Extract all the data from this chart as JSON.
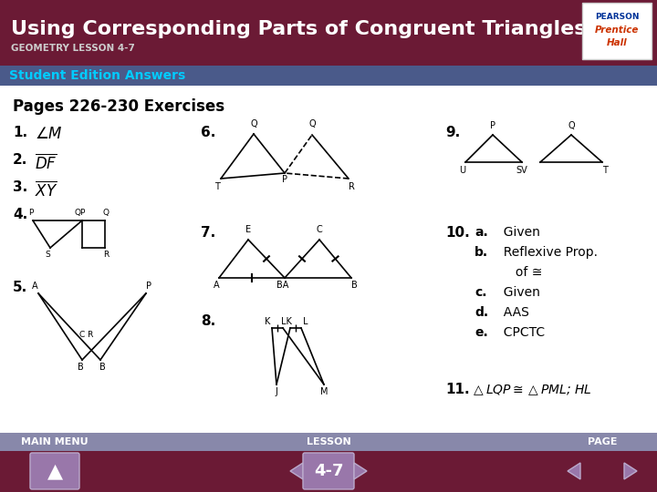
{
  "title": "Using Corresponding Parts of Congruent Triangles",
  "subtitle": "GEOMETRY LESSON 4-7",
  "subtitle2": "Student Edition Answers",
  "pages_header": "Pages 226-230 Exercises",
  "header_bg": "#6b1a35",
  "header_text_color": "#ffffff",
  "subtitle_bar_bg": "#4a5a8a",
  "subtitle_bar_text": "#00ccff",
  "body_bg": "#ffffff",
  "footer_bg": "#6b1a35",
  "footer_bar_bg": "#8888aa",
  "footer_text_color": "#ffffff",
  "footer_button_color": "#8877aa",
  "answer_10": [
    "a.  Given",
    "b.  Reflexive Prop.",
    "     of ≅",
    "c.  Given",
    "d.  AAS",
    "e.  CPCTC"
  ],
  "lesson_number": "4-7"
}
